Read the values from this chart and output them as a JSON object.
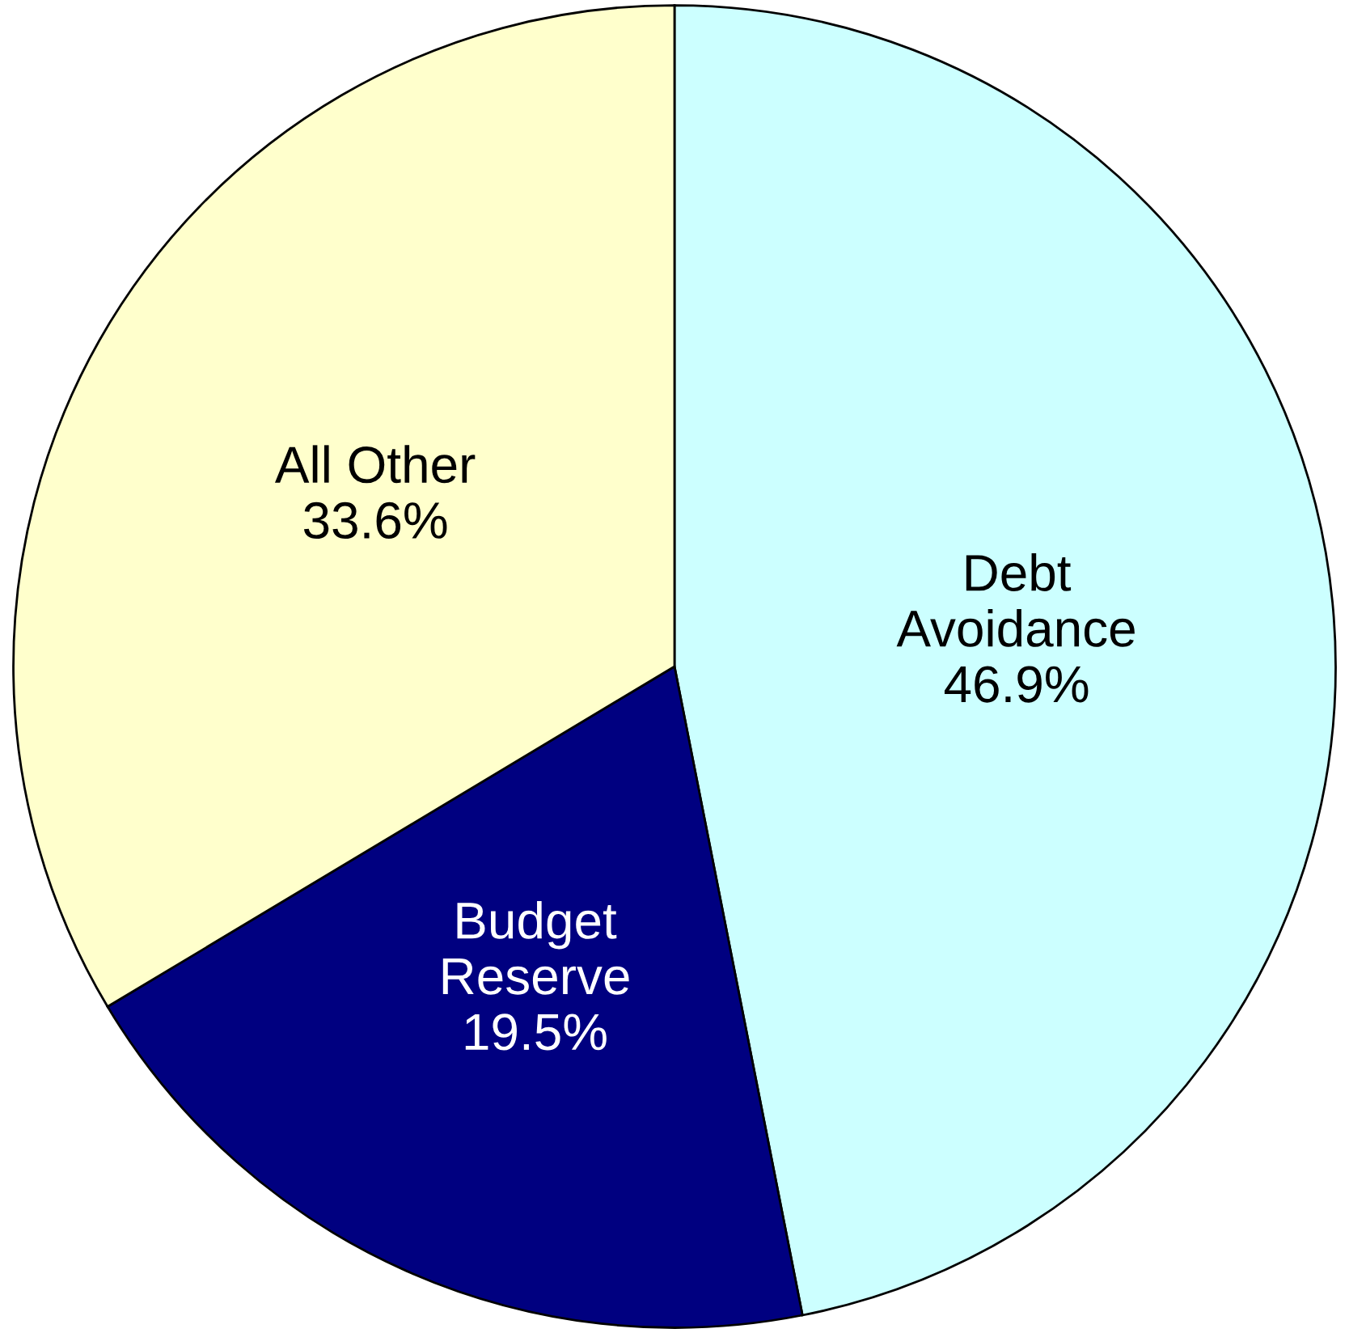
{
  "chart_data": {
    "type": "pie",
    "categories": [
      "Debt\nAvoidance\n46.9%",
      "Budget\nReserve\n19.5%",
      "All Other\n33.6%"
    ],
    "values": [
      46.9,
      19.5,
      33.6
    ],
    "colors": [
      "#ccffff",
      "#000080",
      "#ffffcc"
    ]
  }
}
